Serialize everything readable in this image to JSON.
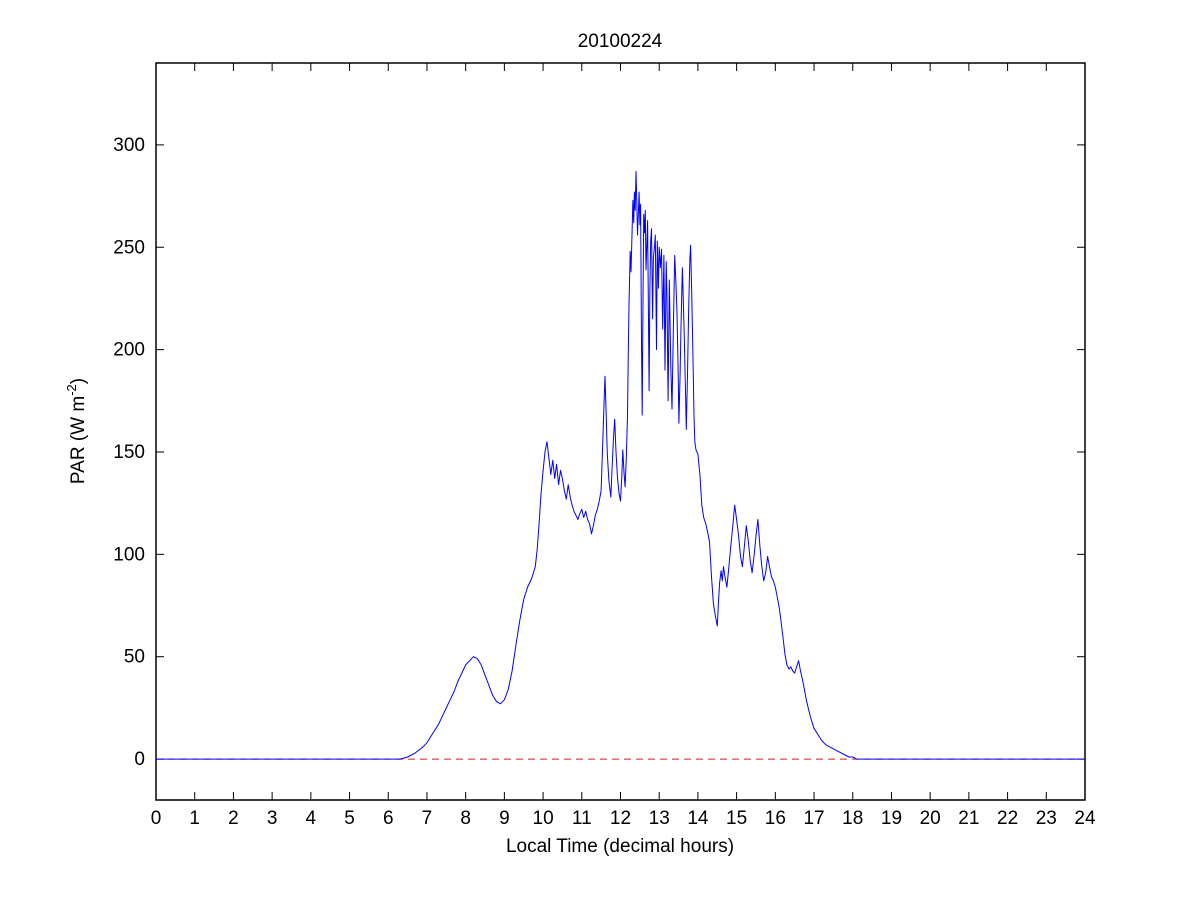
{
  "figure": {
    "background": "#ffffff",
    "axes_color": "#000000"
  },
  "chart_data": {
    "type": "line",
    "title": "20100224",
    "xlabel": "Local Time (decimal hours)",
    "ylabel": "PAR (W m⁻²)",
    "ylabel_parts": {
      "prefix": "PAR (W m",
      "superscript": "-2",
      "suffix": ")"
    },
    "xlim": [
      0,
      24
    ],
    "ylim": [
      -20,
      340
    ],
    "xticks": [
      0,
      1,
      2,
      3,
      4,
      5,
      6,
      7,
      8,
      9,
      10,
      11,
      12,
      13,
      14,
      15,
      16,
      17,
      18,
      19,
      20,
      21,
      22,
      23,
      24
    ],
    "yticks": [
      0,
      50,
      100,
      150,
      200,
      250,
      300
    ],
    "grid": false,
    "legend": null,
    "series": [
      {
        "name": "zero-reference-line",
        "color": "#cc2222",
        "style": "dashed",
        "width": 1,
        "points": [
          [
            0,
            0
          ],
          [
            24,
            0
          ]
        ]
      },
      {
        "name": "par",
        "color": "#0000ff",
        "style": "solid",
        "width": 1,
        "points": [
          [
            0,
            0
          ],
          [
            0.5,
            0
          ],
          [
            1,
            0
          ],
          [
            1.5,
            0
          ],
          [
            2,
            0
          ],
          [
            2.5,
            0
          ],
          [
            3,
            0
          ],
          [
            3.5,
            0
          ],
          [
            4,
            0
          ],
          [
            4.5,
            0
          ],
          [
            5,
            0
          ],
          [
            5.5,
            0
          ],
          [
            6,
            0
          ],
          [
            6.3,
            0
          ],
          [
            6.5,
            1
          ],
          [
            6.7,
            3
          ],
          [
            6.9,
            6
          ],
          [
            7,
            8
          ],
          [
            7.1,
            11
          ],
          [
            7.2,
            14
          ],
          [
            7.3,
            17
          ],
          [
            7.4,
            21
          ],
          [
            7.5,
            25
          ],
          [
            7.6,
            29
          ],
          [
            7.7,
            33
          ],
          [
            7.8,
            38
          ],
          [
            7.9,
            42
          ],
          [
            8,
            46
          ],
          [
            8.1,
            48
          ],
          [
            8.2,
            50
          ],
          [
            8.3,
            49
          ],
          [
            8.4,
            46
          ],
          [
            8.5,
            41
          ],
          [
            8.6,
            36
          ],
          [
            8.7,
            31
          ],
          [
            8.8,
            28
          ],
          [
            8.9,
            27
          ],
          [
            9,
            29
          ],
          [
            9.1,
            34
          ],
          [
            9.2,
            43
          ],
          [
            9.3,
            56
          ],
          [
            9.4,
            68
          ],
          [
            9.5,
            78
          ],
          [
            9.6,
            84
          ],
          [
            9.7,
            88
          ],
          [
            9.8,
            94
          ],
          [
            9.85,
            103
          ],
          [
            9.9,
            116
          ],
          [
            9.95,
            130
          ],
          [
            10,
            141
          ],
          [
            10.05,
            150
          ],
          [
            10.1,
            155
          ],
          [
            10.15,
            147
          ],
          [
            10.2,
            139
          ],
          [
            10.25,
            146
          ],
          [
            10.3,
            137
          ],
          [
            10.35,
            144
          ],
          [
            10.4,
            134
          ],
          [
            10.45,
            141
          ],
          [
            10.5,
            137
          ],
          [
            10.55,
            131
          ],
          [
            10.6,
            127
          ],
          [
            10.65,
            134
          ],
          [
            10.7,
            128
          ],
          [
            10.75,
            124
          ],
          [
            10.8,
            121
          ],
          [
            10.85,
            119
          ],
          [
            10.9,
            117
          ],
          [
            10.95,
            120
          ],
          [
            11,
            122
          ],
          [
            11.05,
            118
          ],
          [
            11.1,
            121
          ],
          [
            11.15,
            117
          ],
          [
            11.2,
            115
          ],
          [
            11.25,
            110
          ],
          [
            11.3,
            114
          ],
          [
            11.35,
            119
          ],
          [
            11.4,
            122
          ],
          [
            11.45,
            126
          ],
          [
            11.5,
            131
          ],
          [
            11.53,
            148
          ],
          [
            11.56,
            166
          ],
          [
            11.6,
            187
          ],
          [
            11.63,
            168
          ],
          [
            11.66,
            149
          ],
          [
            11.7,
            136
          ],
          [
            11.75,
            128
          ],
          [
            11.78,
            141
          ],
          [
            11.82,
            157
          ],
          [
            11.85,
            166
          ],
          [
            11.88,
            151
          ],
          [
            11.92,
            138
          ],
          [
            11.96,
            130
          ],
          [
            12,
            126
          ],
          [
            12.03,
            137
          ],
          [
            12.06,
            151
          ],
          [
            12.09,
            140
          ],
          [
            12.12,
            133
          ],
          [
            12.15,
            147
          ],
          [
            12.18,
            168
          ],
          [
            12.2,
            195
          ],
          [
            12.22,
            222
          ],
          [
            12.25,
            248
          ],
          [
            12.27,
            238
          ],
          [
            12.3,
            258
          ],
          [
            12.32,
            273
          ],
          [
            12.34,
            262
          ],
          [
            12.36,
            277
          ],
          [
            12.38,
            268
          ],
          [
            12.4,
            287
          ],
          [
            12.42,
            272
          ],
          [
            12.44,
            256
          ],
          [
            12.46,
            266
          ],
          [
            12.48,
            277
          ],
          [
            12.5,
            261
          ],
          [
            12.52,
            271
          ],
          [
            12.54,
            210
          ],
          [
            12.56,
            168
          ],
          [
            12.58,
            224
          ],
          [
            12.6,
            266
          ],
          [
            12.62,
            257
          ],
          [
            12.64,
            268
          ],
          [
            12.66,
            239
          ],
          [
            12.68,
            250
          ],
          [
            12.7,
            263
          ],
          [
            12.72,
            220
          ],
          [
            12.74,
            180
          ],
          [
            12.76,
            230
          ],
          [
            12.78,
            253
          ],
          [
            12.8,
            259
          ],
          [
            12.83,
            215
          ],
          [
            12.85,
            245
          ],
          [
            12.88,
            251
          ],
          [
            12.9,
            256
          ],
          [
            12.93,
            200
          ],
          [
            12.95,
            253
          ],
          [
            12.98,
            230
          ],
          [
            13,
            250
          ],
          [
            13.03,
            240
          ],
          [
            13.06,
            249
          ],
          [
            13.09,
            210
          ],
          [
            13.12,
            246
          ],
          [
            13.15,
            190
          ],
          [
            13.18,
            243
          ],
          [
            13.2,
            228
          ],
          [
            13.23,
            175
          ],
          [
            13.26,
            234
          ],
          [
            13.3,
            192
          ],
          [
            13.33,
            171
          ],
          [
            13.36,
            203
          ],
          [
            13.4,
            246
          ],
          [
            13.43,
            233
          ],
          [
            13.46,
            218
          ],
          [
            13.49,
            188
          ],
          [
            13.51,
            164
          ],
          [
            13.54,
            188
          ],
          [
            13.57,
            218
          ],
          [
            13.6,
            240
          ],
          [
            13.62,
            226
          ],
          [
            13.65,
            204
          ],
          [
            13.68,
            179
          ],
          [
            13.7,
            161
          ],
          [
            13.73,
            188
          ],
          [
            13.76,
            218
          ],
          [
            13.79,
            243
          ],
          [
            13.81,
            251
          ],
          [
            13.84,
            228
          ],
          [
            13.87,
            198
          ],
          [
            13.9,
            168
          ],
          [
            13.92,
            155
          ],
          [
            13.95,
            151
          ],
          [
            14,
            149
          ],
          [
            14.05,
            139
          ],
          [
            14.1,
            124
          ],
          [
            14.15,
            118
          ],
          [
            14.2,
            115
          ],
          [
            14.25,
            111
          ],
          [
            14.3,
            106
          ],
          [
            14.35,
            89
          ],
          [
            14.4,
            76
          ],
          [
            14.45,
            70
          ],
          [
            14.5,
            65
          ],
          [
            14.53,
            76
          ],
          [
            14.56,
            86
          ],
          [
            14.6,
            92
          ],
          [
            14.63,
            87
          ],
          [
            14.66,
            94
          ],
          [
            14.7,
            89
          ],
          [
            14.75,
            84
          ],
          [
            14.8,
            94
          ],
          [
            14.85,
            104
          ],
          [
            14.9,
            114
          ],
          [
            14.95,
            124
          ],
          [
            15,
            117
          ],
          [
            15.05,
            109
          ],
          [
            15.1,
            99
          ],
          [
            15.15,
            94
          ],
          [
            15.2,
            104
          ],
          [
            15.25,
            114
          ],
          [
            15.3,
            107
          ],
          [
            15.35,
            97
          ],
          [
            15.4,
            91
          ],
          [
            15.45,
            99
          ],
          [
            15.5,
            109
          ],
          [
            15.55,
            117
          ],
          [
            15.6,
            104
          ],
          [
            15.65,
            94
          ],
          [
            15.7,
            87
          ],
          [
            15.75,
            91
          ],
          [
            15.8,
            99
          ],
          [
            15.85,
            94
          ],
          [
            15.9,
            89
          ],
          [
            15.95,
            87
          ],
          [
            16,
            84
          ],
          [
            16.05,
            79
          ],
          [
            16.1,
            74
          ],
          [
            16.15,
            67
          ],
          [
            16.2,
            59
          ],
          [
            16.25,
            51
          ],
          [
            16.3,
            46
          ],
          [
            16.35,
            44
          ],
          [
            16.4,
            45
          ],
          [
            16.45,
            43
          ],
          [
            16.5,
            42
          ],
          [
            16.55,
            45
          ],
          [
            16.6,
            48
          ],
          [
            16.65,
            43
          ],
          [
            16.7,
            39
          ],
          [
            16.75,
            34
          ],
          [
            16.8,
            29
          ],
          [
            16.85,
            25
          ],
          [
            16.9,
            21
          ],
          [
            17,
            15
          ],
          [
            17.1,
            12
          ],
          [
            17.2,
            9
          ],
          [
            17.3,
            7
          ],
          [
            17.4,
            6
          ],
          [
            17.5,
            5
          ],
          [
            17.6,
            4
          ],
          [
            17.7,
            3
          ],
          [
            17.8,
            2
          ],
          [
            17.9,
            1
          ],
          [
            18,
            1
          ],
          [
            18.1,
            0
          ],
          [
            18.5,
            0
          ],
          [
            19,
            0
          ],
          [
            19.5,
            0
          ],
          [
            20,
            0
          ],
          [
            20.5,
            0
          ],
          [
            21,
            0
          ],
          [
            21.5,
            0
          ],
          [
            22,
            0
          ],
          [
            22.5,
            0
          ],
          [
            23,
            0
          ],
          [
            23.5,
            0
          ],
          [
            24,
            0
          ]
        ]
      }
    ]
  }
}
